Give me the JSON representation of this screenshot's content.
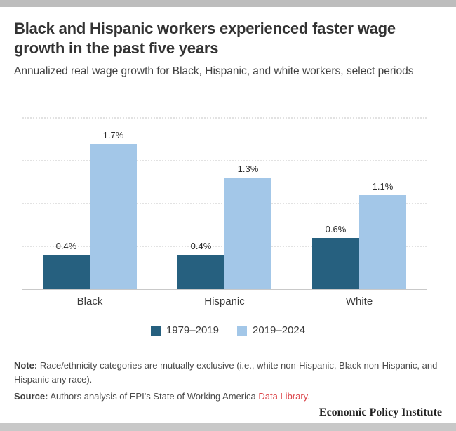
{
  "header": {
    "title": "Black and Hispanic workers experienced faster wage growth in the past five years",
    "subtitle": "Annualized real wage growth for Black, Hispanic, and white workers, select periods"
  },
  "chart_data": {
    "type": "bar",
    "title": "Black and Hispanic workers experienced faster wage growth in the past five years",
    "categories": [
      "Black",
      "Hispanic",
      "White"
    ],
    "series": [
      {
        "name": "1979–2019",
        "color": "#26607F",
        "values": [
          0.4,
          0.4,
          0.6
        ],
        "labels": [
          "0.4%",
          "0.4%",
          "0.6%"
        ]
      },
      {
        "name": "2019–2024",
        "color": "#A3C7E8",
        "values": [
          1.7,
          1.3,
          1.1
        ],
        "labels": [
          "1.7%",
          "1.3%",
          "1.1%"
        ]
      }
    ],
    "xlabel": "",
    "ylabel": "",
    "ylim": [
      0,
      2.115
    ],
    "gridlines": [
      0.5,
      1.0,
      1.5,
      2.0
    ],
    "grid_style": "dotted-horizontal",
    "legend_position": "bottom-center",
    "value_label_format": "percent-one-decimal"
  },
  "footnotes": {
    "note_label": "Note:",
    "note_body": "Race/ethnicity categories are mutually exclusive (i.e., white non-Hispanic, Black non-Hispanic, and Hispanic any race).",
    "source_label": "Source:",
    "source_body": "Authors analysis of EPI's State of Working America",
    "source_link": "Data Library",
    "source_suffix": "."
  },
  "footer": {
    "brand": "Economic Policy Institute"
  },
  "colors": {
    "series_dark": "#26607F",
    "series_light": "#A3C7E8",
    "top_bar": "#bdbdbd",
    "bottom_bar": "#c8c8c8",
    "link_red": "#db4348",
    "gridline": "#e2e2e2",
    "axis_line": "#c9c9c9"
  }
}
